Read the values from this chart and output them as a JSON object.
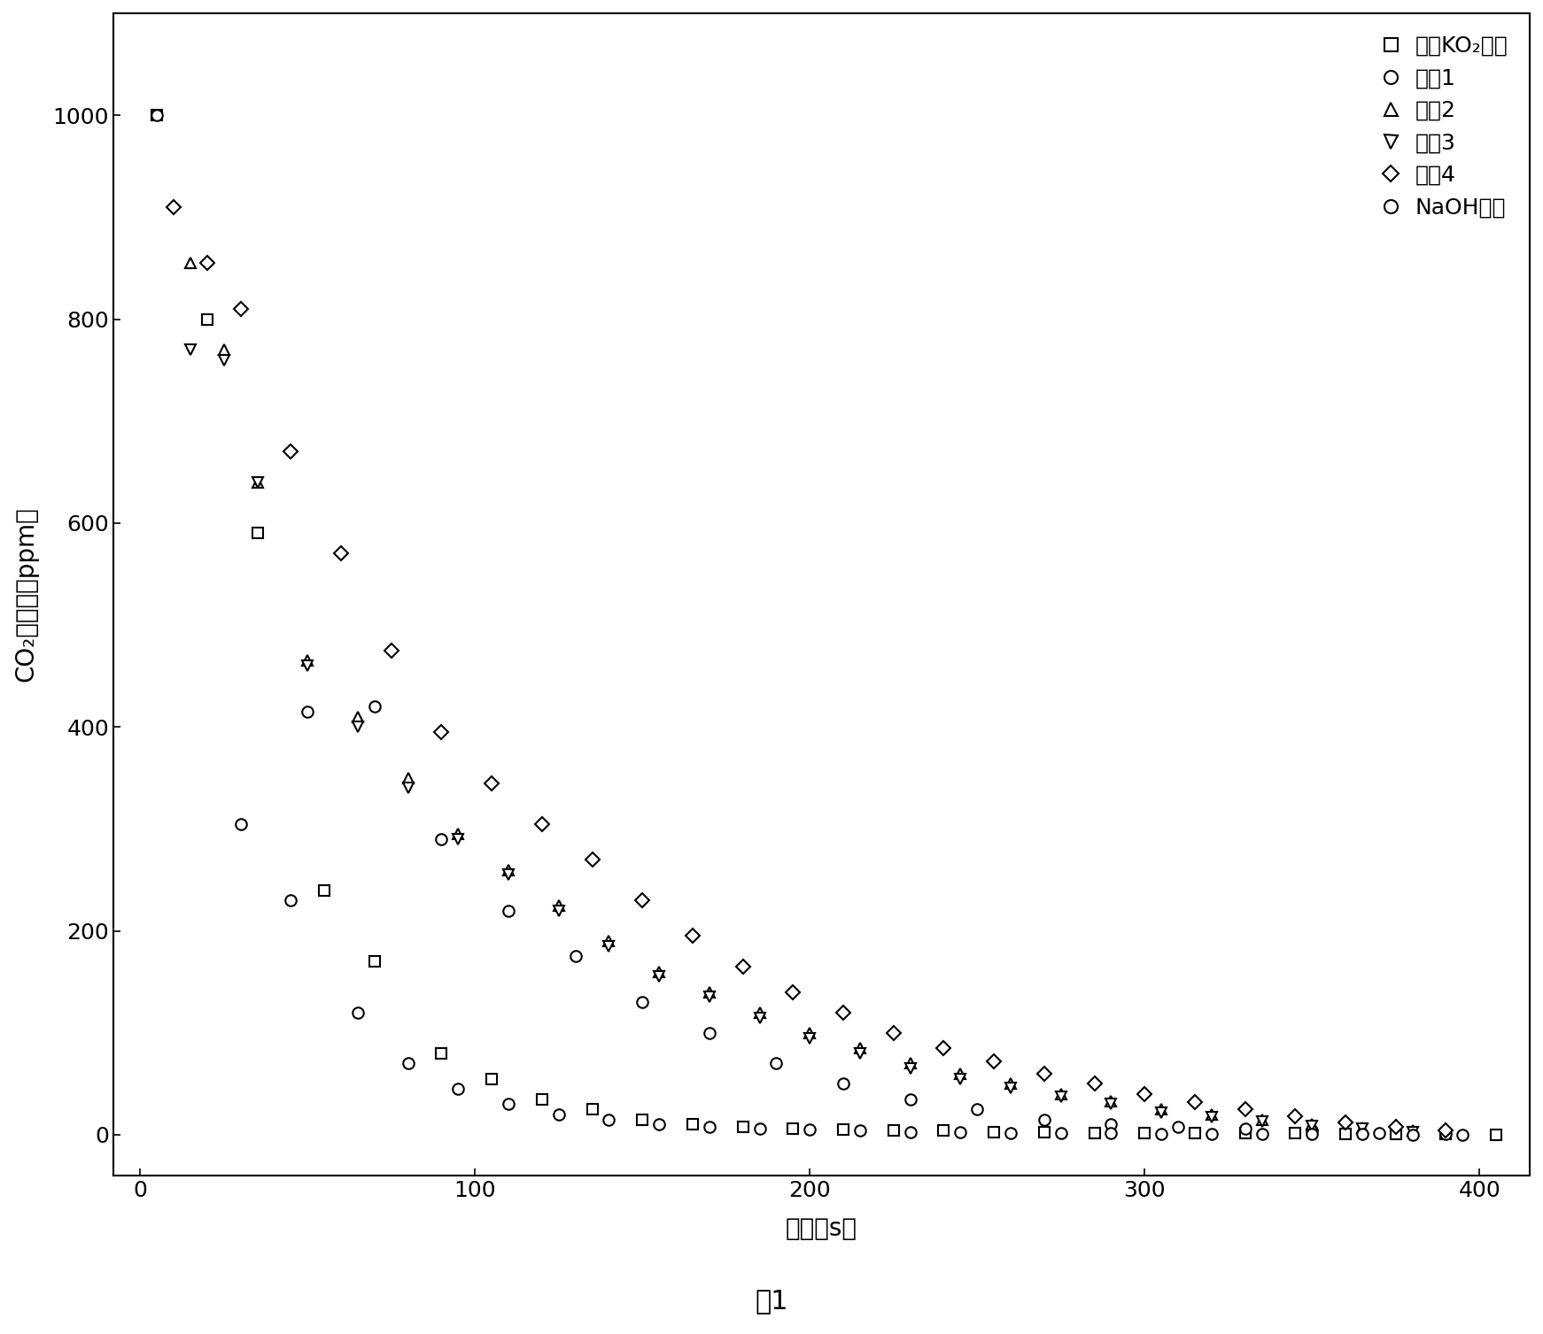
{
  "title": "",
  "xlabel": "时间（s）",
  "ylabel": "CO₂的浓度（ppm）",
  "caption": "图1",
  "xlim": [
    -8,
    415
  ],
  "ylim": [
    -40,
    1100
  ],
  "xticks": [
    0,
    100,
    200,
    300,
    400
  ],
  "yticks": [
    0,
    200,
    400,
    600,
    800,
    1000
  ],
  "legend_labels": [
    "纯的KO₂粉末",
    "样品1",
    "样品2",
    "样品3",
    "样品4",
    "NaOH颗粒"
  ],
  "series": {
    "KO2": {
      "x": [
        5,
        20,
        35,
        55,
        70,
        90,
        105,
        120,
        135,
        150,
        165,
        180,
        195,
        210,
        225,
        240,
        255,
        270,
        285,
        300,
        315,
        330,
        345,
        360,
        375,
        390,
        405
      ],
      "y": [
        1000,
        800,
        590,
        240,
        170,
        80,
        55,
        35,
        25,
        15,
        10,
        8,
        6,
        5,
        4,
        4,
        3,
        3,
        2,
        2,
        2,
        2,
        2,
        1,
        1,
        1,
        0
      ],
      "marker": "s",
      "markersize": 9
    },
    "sample1": {
      "x": [
        5,
        30,
        45,
        70,
        90,
        110,
        130,
        150,
        170,
        190,
        210,
        230,
        250,
        270,
        290,
        310,
        330,
        350,
        370,
        390
      ],
      "y": [
        1000,
        305,
        230,
        420,
        290,
        220,
        175,
        130,
        100,
        70,
        50,
        35,
        25,
        15,
        10,
        8,
        6,
        4,
        2,
        1
      ],
      "marker": "o",
      "markersize": 9
    },
    "sample2": {
      "x": [
        15,
        25,
        35,
        50,
        65,
        80,
        95,
        110,
        125,
        140,
        155,
        170,
        185,
        200,
        215,
        230,
        245,
        260,
        275,
        290,
        305,
        320,
        335,
        350,
        365,
        380
      ],
      "y": [
        855,
        770,
        640,
        465,
        410,
        350,
        295,
        260,
        225,
        190,
        160,
        140,
        120,
        100,
        85,
        70,
        60,
        50,
        40,
        33,
        25,
        20,
        15,
        10,
        7,
        4
      ],
      "marker": "^",
      "markersize": 9
    },
    "sample3": {
      "x": [
        15,
        25,
        35,
        50,
        65,
        80,
        95,
        110,
        125,
        140,
        155,
        170,
        185,
        200,
        215,
        230,
        245,
        260,
        275,
        290,
        305,
        320,
        335,
        350,
        365,
        380
      ],
      "y": [
        770,
        760,
        640,
        460,
        400,
        340,
        290,
        255,
        220,
        185,
        155,
        135,
        115,
        95,
        80,
        65,
        55,
        46,
        37,
        30,
        22,
        17,
        13,
        9,
        6,
        3
      ],
      "marker": "v",
      "markersize": 9
    },
    "sample4": {
      "x": [
        10,
        20,
        30,
        45,
        60,
        75,
        90,
        105,
        120,
        135,
        150,
        165,
        180,
        195,
        210,
        225,
        240,
        255,
        270,
        285,
        300,
        315,
        330,
        345,
        360,
        375,
        390
      ],
      "y": [
        910,
        855,
        810,
        670,
        570,
        475,
        395,
        345,
        305,
        270,
        230,
        195,
        165,
        140,
        120,
        100,
        85,
        72,
        60,
        50,
        40,
        32,
        25,
        18,
        12,
        8,
        4
      ],
      "marker": "D",
      "markersize": 8
    },
    "NaOH": {
      "x": [
        50,
        65,
        80,
        95,
        110,
        125,
        140,
        155,
        170,
        185,
        200,
        215,
        230,
        245,
        260,
        275,
        290,
        305,
        320,
        335,
        350,
        365,
        380,
        395
      ],
      "y": [
        415,
        120,
        70,
        45,
        30,
        20,
        15,
        10,
        8,
        6,
        5,
        4,
        3,
        3,
        2,
        2,
        2,
        1,
        1,
        1,
        1,
        1,
        0,
        0
      ],
      "marker": "o",
      "markersize": 9
    }
  },
  "background_color": "#ffffff",
  "fontsize_labels": 20,
  "fontsize_ticks": 18,
  "fontsize_legend": 18,
  "fontsize_caption": 22,
  "marker_edge_width": 1.5
}
